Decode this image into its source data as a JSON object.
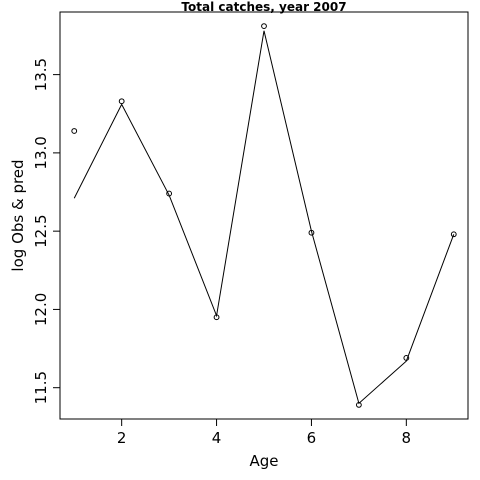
{
  "chart_data": {
    "type": "line",
    "title": "Total catches, year 2007",
    "xlabel": "Age",
    "ylabel": "log Obs & pred",
    "xlim": [
      0.7,
      9.3
    ],
    "ylim": [
      11.3,
      13.9
    ],
    "x_ticks": [
      2,
      4,
      6,
      8
    ],
    "y_ticks": [
      11.5,
      12.0,
      12.5,
      13.0,
      13.5
    ],
    "x_tick_labels": [
      "2",
      "4",
      "6",
      "8"
    ],
    "y_tick_labels": [
      "11.5",
      "12.0",
      "12.5",
      "13.0",
      "13.5"
    ],
    "grid": false,
    "legend": "none",
    "series": [
      {
        "kind": "points",
        "x": [
          1,
          2,
          3,
          4,
          5,
          6,
          7,
          8,
          9
        ],
        "values": [
          13.14,
          13.33,
          12.74,
          11.95,
          13.81,
          12.49,
          11.39,
          11.69,
          12.48
        ]
      },
      {
        "kind": "line",
        "x": [
          1,
          2,
          3,
          4,
          5,
          6,
          7,
          8,
          9
        ],
        "values": [
          12.71,
          13.31,
          12.73,
          11.96,
          13.78,
          12.5,
          11.4,
          11.67,
          12.48
        ]
      }
    ]
  }
}
